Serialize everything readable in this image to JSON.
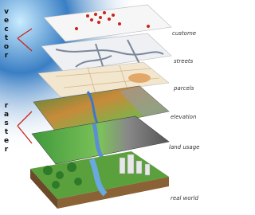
{
  "side_labels": {
    "vector": "vector",
    "raster": "raster"
  },
  "layers": [
    {
      "label": "custome"
    },
    {
      "label": "streets"
    },
    {
      "label": "parcels"
    },
    {
      "label": "elevation"
    },
    {
      "label": "land usage"
    },
    {
      "label": "real world"
    }
  ]
}
